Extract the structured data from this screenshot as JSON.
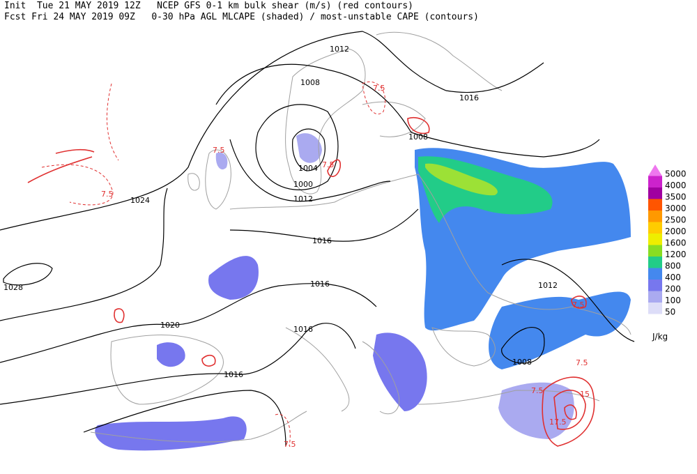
{
  "header": {
    "line1": "Init  Tue 21 MAY 2019 12Z   NCEP GFS 0-1 km bulk shear (m/s) (red contours)",
    "line2": "Fcst Fri 24 MAY 2019 09Z   0-30 hPa AGL MLCAPE (shaded) / most-unstable CAPE (contours)"
  },
  "pressure_labels": [
    "1012",
    "1008",
    "1016",
    "1008",
    "1004",
    "1000",
    "1012",
    "1024",
    "1016",
    "1028",
    "1016",
    "1012",
    "1020",
    "1016",
    "1008",
    "1016"
  ],
  "shear_labels": [
    "7.5",
    "7.5",
    "7.5",
    "7.5",
    "7.5",
    "7.5",
    "7.5",
    "15",
    "17.5",
    "7.5"
  ],
  "legend": {
    "unit": "J/kg",
    "items": [
      {
        "label": "5000",
        "color": "#ee77ee"
      },
      {
        "label": "4000",
        "color": "#cc22cc"
      },
      {
        "label": "3500",
        "color": "#a000a0"
      },
      {
        "label": "3000",
        "color": "#ff5500"
      },
      {
        "label": "2500",
        "color": "#ff9900"
      },
      {
        "label": "2000",
        "color": "#ffcc00"
      },
      {
        "label": "1600",
        "color": "#eeee00"
      },
      {
        "label": "1200",
        "color": "#88dd22"
      },
      {
        "label": "800",
        "color": "#22cc88"
      },
      {
        "label": "400",
        "color": "#4488ee"
      },
      {
        "label": "200",
        "color": "#7777ee"
      },
      {
        "label": "100",
        "color": "#aaaaf0"
      },
      {
        "label": "50",
        "color": "#ddddf8"
      }
    ]
  }
}
